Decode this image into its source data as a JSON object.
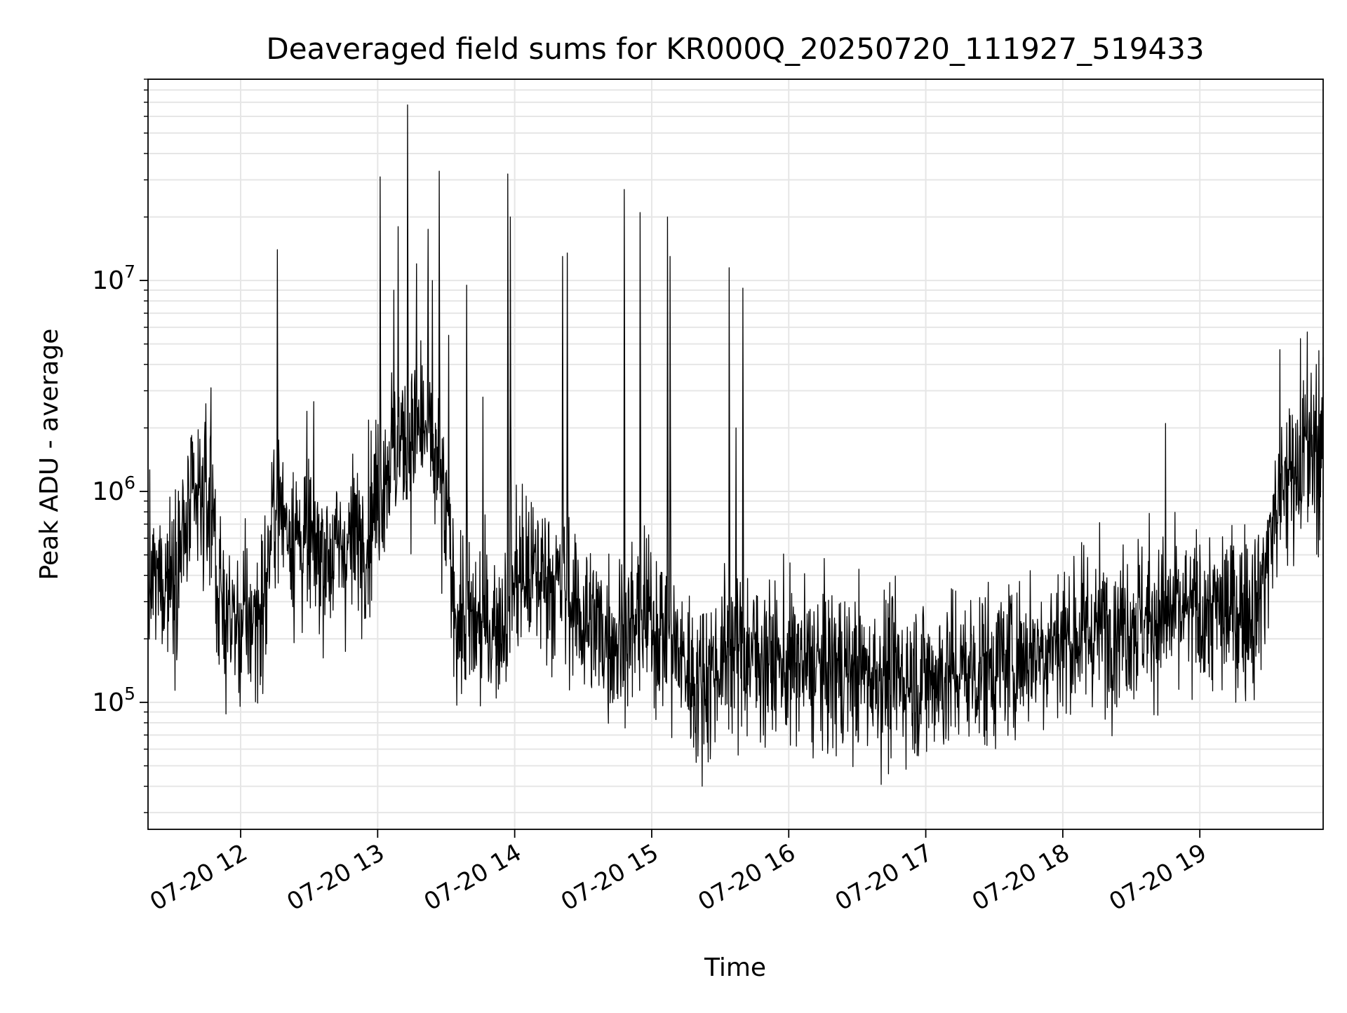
{
  "chart_data": {
    "type": "line",
    "title": "Deaveraged field sums for KR000Q_20250720_111927_519433",
    "xlabel": "Time",
    "ylabel": "Peak ADU - average",
    "y_scale": "log",
    "ylim": [
      25000,
      90000000
    ],
    "xlim": [
      "2025-07-20 11:19:27",
      "2025-07-20 19:54:00"
    ],
    "grid": true,
    "legend": "none",
    "line_color": "#000000",
    "x_ticks": [
      {
        "t": "2025-07-20 12:00",
        "label": "07-20 12"
      },
      {
        "t": "2025-07-20 13:00",
        "label": "07-20 13"
      },
      {
        "t": "2025-07-20 14:00",
        "label": "07-20 14"
      },
      {
        "t": "2025-07-20 15:00",
        "label": "07-20 15"
      },
      {
        "t": "2025-07-20 16:00",
        "label": "07-20 16"
      },
      {
        "t": "2025-07-20 17:00",
        "label": "07-20 17"
      },
      {
        "t": "2025-07-20 18:00",
        "label": "07-20 18"
      },
      {
        "t": "2025-07-20 19:00",
        "label": "07-20 19"
      }
    ],
    "y_ticks": [
      {
        "value": 100000,
        "base": "10",
        "exp": "5"
      },
      {
        "value": 1000000,
        "base": "10",
        "exp": "6"
      },
      {
        "value": 10000000,
        "base": "10",
        "exp": "7"
      }
    ],
    "series": [
      {
        "baseline": [
          [
            "2025-07-20 11:20",
            350000
          ],
          [
            "2025-07-20 11:30",
            420000
          ],
          [
            "2025-07-20 11:40",
            850000
          ],
          [
            "2025-07-20 11:48",
            950000
          ],
          [
            "2025-07-20 11:50",
            300000
          ],
          [
            "2025-07-20 12:00",
            220000
          ],
          [
            "2025-07-20 12:10",
            280000
          ],
          [
            "2025-07-20 12:15",
            900000
          ],
          [
            "2025-07-20 12:25",
            600000
          ],
          [
            "2025-07-20 12:40",
            500000
          ],
          [
            "2025-07-20 12:55",
            650000
          ],
          [
            "2025-07-20 13:05",
            1500000
          ],
          [
            "2025-07-20 13:20",
            2000000
          ],
          [
            "2025-07-20 13:27",
            1200000
          ],
          [
            "2025-07-20 13:35",
            250000
          ],
          [
            "2025-07-20 13:45",
            220000
          ],
          [
            "2025-07-20 13:55",
            250000
          ],
          [
            "2025-07-20 14:00",
            400000
          ],
          [
            "2025-07-20 14:15",
            400000
          ],
          [
            "2025-07-20 14:30",
            250000
          ],
          [
            "2025-07-20 14:45",
            200000
          ],
          [
            "2025-07-20 15:00",
            250000
          ],
          [
            "2025-07-20 15:10",
            180000
          ],
          [
            "2025-07-20 15:20",
            120000
          ],
          [
            "2025-07-20 15:35",
            180000
          ],
          [
            "2025-07-20 16:00",
            150000
          ],
          [
            "2025-07-20 16:30",
            140000
          ],
          [
            "2025-07-20 17:00",
            130000
          ],
          [
            "2025-07-20 17:30",
            150000
          ],
          [
            "2025-07-20 18:00",
            200000
          ],
          [
            "2025-07-20 18:30",
            250000
          ],
          [
            "2025-07-20 19:00",
            260000
          ],
          [
            "2025-07-20 19:25",
            280000
          ],
          [
            "2025-07-20 19:35",
            1000000
          ],
          [
            "2025-07-20 19:45",
            1500000
          ],
          [
            "2025-07-20 19:54",
            1500000
          ]
        ],
        "noise": 0.55,
        "points_per_hour": 320,
        "spikes": [
          [
            "2025-07-20 11:47",
            3100000
          ],
          [
            "2025-07-20 12:16",
            14000000
          ],
          [
            "2025-07-20 12:29",
            2400000
          ],
          [
            "2025-07-20 13:01",
            31000000
          ],
          [
            "2025-07-20 13:07",
            9000000
          ],
          [
            "2025-07-20 13:09",
            18000000
          ],
          [
            "2025-07-20 13:13",
            68000000
          ],
          [
            "2025-07-20 13:17",
            12000000
          ],
          [
            "2025-07-20 13:22",
            17500000
          ],
          [
            "2025-07-20 13:24",
            10000000
          ],
          [
            "2025-07-20 13:27",
            33000000
          ],
          [
            "2025-07-20 13:31",
            5500000
          ],
          [
            "2025-07-20 13:39",
            9500000
          ],
          [
            "2025-07-20 13:46",
            2800000
          ],
          [
            "2025-07-20 13:57",
            32000000
          ],
          [
            "2025-07-20 13:58",
            20000000
          ],
          [
            "2025-07-20 14:21",
            13000000
          ],
          [
            "2025-07-20 14:23",
            13500000
          ],
          [
            "2025-07-20 14:48",
            27000000
          ],
          [
            "2025-07-20 14:55",
            21000000
          ],
          [
            "2025-07-20 15:07",
            20000000
          ],
          [
            "2025-07-20 15:08",
            13000000
          ],
          [
            "2025-07-20 15:34",
            11500000
          ],
          [
            "2025-07-20 15:37",
            2000000
          ],
          [
            "2025-07-20 15:40",
            9200000
          ],
          [
            "2025-07-20 18:45",
            2100000
          ],
          [
            "2025-07-20 19:35",
            4700000
          ],
          [
            "2025-07-20 19:44",
            5300000
          ],
          [
            "2025-07-20 19:47",
            5700000
          ],
          [
            "2025-07-20 19:51",
            4000000
          ]
        ]
      }
    ]
  }
}
